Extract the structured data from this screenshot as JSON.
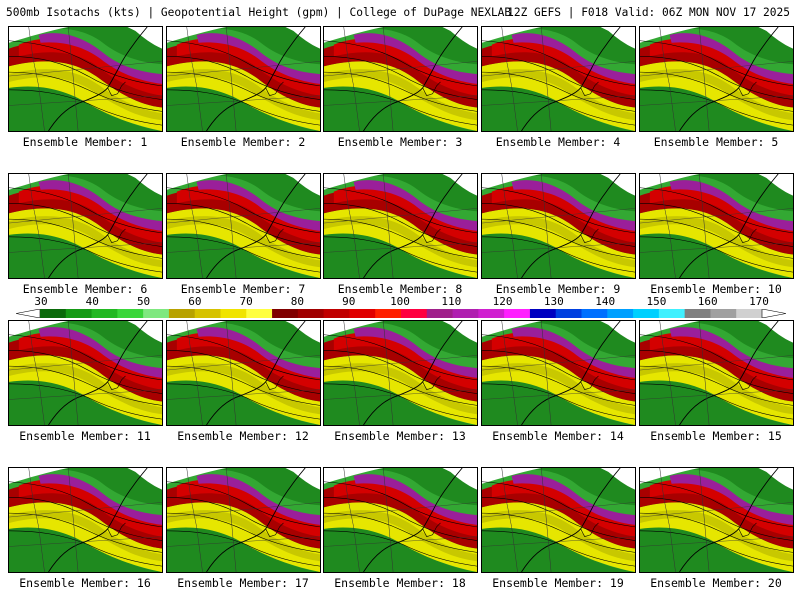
{
  "header": {
    "left": "500mb Isotachs (kts) | Geopotential Height (gpm) | College of DuPage NEXLAB",
    "right": "12Z GEFS | F018 Valid: 06Z MON NOV 17 2025"
  },
  "members": [
    {
      "label": "Ensemble Member: 1"
    },
    {
      "label": "Ensemble Member: 2"
    },
    {
      "label": "Ensemble Member: 3"
    },
    {
      "label": "Ensemble Member: 4"
    },
    {
      "label": "Ensemble Member: 5"
    },
    {
      "label": "Ensemble Member: 6"
    },
    {
      "label": "Ensemble Member: 7"
    },
    {
      "label": "Ensemble Member: 8"
    },
    {
      "label": "Ensemble Member: 9"
    },
    {
      "label": "Ensemble Member: 10"
    },
    {
      "label": "Ensemble Member: 11"
    },
    {
      "label": "Ensemble Member: 12"
    },
    {
      "label": "Ensemble Member: 13"
    },
    {
      "label": "Ensemble Member: 14"
    },
    {
      "label": "Ensemble Member: 15"
    },
    {
      "label": "Ensemble Member: 16"
    },
    {
      "label": "Ensemble Member: 17"
    },
    {
      "label": "Ensemble Member: 18"
    },
    {
      "label": "Ensemble Member: 19"
    },
    {
      "label": "Ensemble Member: 20"
    }
  ],
  "legend": {
    "ticks": [
      "30",
      "40",
      "50",
      "60",
      "70",
      "80",
      "90",
      "100",
      "110",
      "120",
      "130",
      "140",
      "150",
      "160",
      "170"
    ],
    "colors": [
      "#0a6a0a",
      "#159a15",
      "#22b822",
      "#3ad63a",
      "#7fe87f",
      "#b8a200",
      "#d6c200",
      "#f0e400",
      "#ffff40",
      "#800000",
      "#a00000",
      "#c00000",
      "#e00000",
      "#ff2000",
      "#ff0040",
      "#a0208a",
      "#b020b0",
      "#d020d0",
      "#ff20ff",
      "#0000c0",
      "#0040e0",
      "#0070ff",
      "#00a0ff",
      "#00d0ff",
      "#40f0ff",
      "#808080",
      "#a0a0a0",
      "#d0d0d0"
    ]
  }
}
